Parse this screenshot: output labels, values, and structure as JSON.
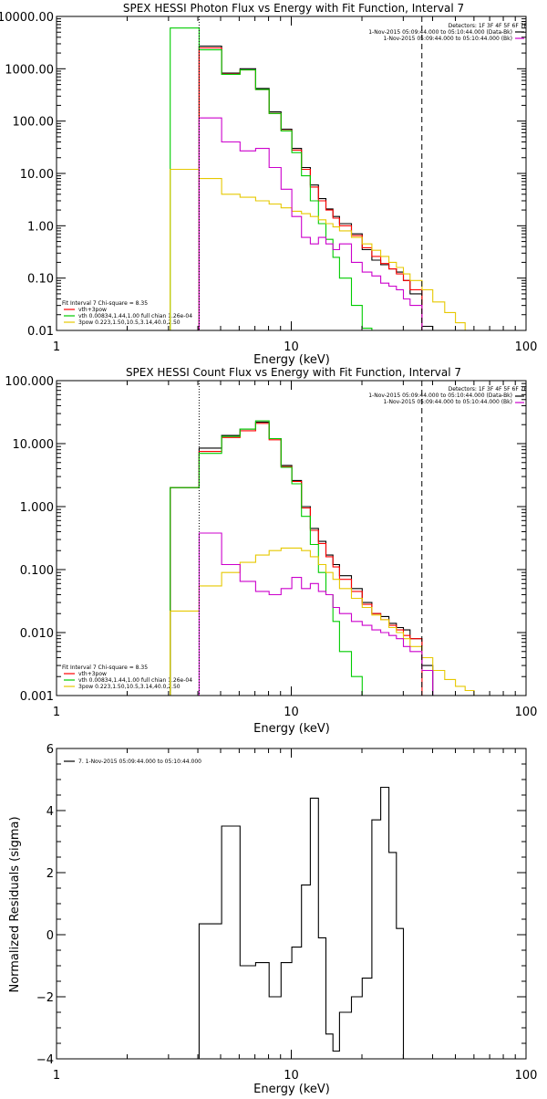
{
  "colors": {
    "total": "#000000",
    "model": "#ff0000",
    "vth": "#00cc00",
    "pow": "#e6c800",
    "bk": "#cc00cc"
  },
  "chart_data": [
    {
      "type": "line",
      "title": "SPEX HESSI Photon Flux vs Energy with Fit Function, Interval 7",
      "xlabel": "Energy (keV)",
      "ylabel": "",
      "xscale": "log",
      "yscale": "log",
      "xlim": [
        1,
        100
      ],
      "ylim": [
        0.01,
        10000
      ],
      "xticks": [
        "1",
        "10",
        "100"
      ],
      "yticks": [
        {
          "v": 10000,
          "label": "10000.00"
        },
        {
          "v": 1000,
          "label": "1000.00"
        },
        {
          "v": 100,
          "label": "100.00"
        },
        {
          "v": 10,
          "label": "10.00"
        },
        {
          "v": 1,
          "label": "1.00"
        },
        {
          "v": 0.1,
          "label": "0.10"
        },
        {
          "v": 0.01,
          "label": "0.01"
        }
      ],
      "header": [
        "Detectors: 1F 3F 4F 5F 6F 7F",
        "1-Nov-2015 05:09:44.000 to 05:10:44.000 (Data-Bk)",
        "1-Nov-2015 05:09:44.000 to 05:10:44.000 (Bk)"
      ],
      "legend": [
        "Fit Interval 7   Chi-square = 8.35",
        "vth+3pow",
        "vth 0.00834,1.44,1.00  full chian 1.26e-04",
        "3pow 0.223,1.50,10.5,3.14,40.0,2.50"
      ],
      "vlines": [
        {
          "x": 4.05,
          "style": "dotted"
        },
        {
          "x": 36,
          "style": "dashed"
        }
      ],
      "edges": [
        3.05,
        4.05,
        5.05,
        6.05,
        7.05,
        8.05,
        9.05,
        10.05,
        11.05,
        12.05,
        13.05,
        14.05,
        15.05,
        16.05,
        18.05,
        20.05,
        22.05,
        24.05,
        26.05,
        28.05,
        30.05,
        32.05,
        36.05,
        40.05,
        45.05,
        50.05,
        55.05,
        60.05
      ],
      "series": [
        {
          "name": "Data-Bk",
          "color": "#000000",
          "values": [
            null,
            2700,
            830,
            1000,
            420,
            150,
            70,
            30,
            13,
            6,
            3.3,
            2.1,
            1.5,
            1.1,
            0.7,
            0.35,
            0.22,
            0.18,
            0.15,
            0.13,
            0.09,
            0.05,
            0.012,
            null,
            null,
            null,
            null
          ]
        },
        {
          "name": "vth+3pow",
          "color": "#ff0000",
          "values": [
            null,
            2500,
            790,
            950,
            400,
            140,
            66,
            28,
            12,
            5.5,
            3.0,
            2.0,
            1.4,
            1.0,
            0.65,
            0.38,
            0.26,
            0.19,
            0.15,
            0.12,
            0.09,
            0.06,
            null,
            null,
            null,
            null,
            null
          ]
        },
        {
          "name": "vth",
          "color": "#00cc00",
          "values": [
            6000,
            2300,
            780,
            950,
            400,
            140,
            65,
            25,
            9,
            3.0,
            1.1,
            0.55,
            0.25,
            0.1,
            0.03,
            0.011,
            null,
            null,
            null,
            null,
            null,
            null,
            null,
            null,
            null,
            null,
            null
          ]
        },
        {
          "name": "3pow",
          "color": "#e6c800",
          "values": [
            12,
            8,
            4,
            3.5,
            3.0,
            2.6,
            2.2,
            1.9,
            1.7,
            1.5,
            1.3,
            1.1,
            0.95,
            0.8,
            0.6,
            0.45,
            0.34,
            0.26,
            0.2,
            0.16,
            0.12,
            0.09,
            0.06,
            0.035,
            0.022,
            0.014,
            0.01
          ]
        },
        {
          "name": "Bk",
          "color": "#cc00cc",
          "values": [
            null,
            115,
            40,
            27,
            30,
            13,
            5,
            1.5,
            0.6,
            0.45,
            0.6,
            0.45,
            0.35,
            0.45,
            0.2,
            0.13,
            0.11,
            0.08,
            0.07,
            0.06,
            0.04,
            0.03,
            0.01,
            null,
            null,
            null,
            null
          ]
        }
      ]
    },
    {
      "type": "line",
      "title": "SPEX HESSI Count Flux vs Energy with Fit Function, Interval 7",
      "xlabel": "Energy (keV)",
      "ylabel": "",
      "xscale": "log",
      "yscale": "log",
      "xlim": [
        1,
        100
      ],
      "ylim": [
        0.001,
        100
      ],
      "xticks": [
        "1",
        "10",
        "100"
      ],
      "yticks": [
        {
          "v": 100,
          "label": "100.000"
        },
        {
          "v": 10,
          "label": "10.000"
        },
        {
          "v": 1,
          "label": "1.000"
        },
        {
          "v": 0.1,
          "label": "0.100"
        },
        {
          "v": 0.01,
          "label": "0.010"
        },
        {
          "v": 0.001,
          "label": "0.001"
        }
      ],
      "header": [
        "Detectors: 1F 3F 4F 5F 6F 7F",
        "1-Nov-2015 05:09:44.000 to 05:10:44.000 (Data-Bk)",
        "1-Nov-2015 05:09:44.000 to 05:10:44.000 (Bk)"
      ],
      "legend": [
        "Fit Interval 7   Chi-square = 8.35",
        "vth+3pow",
        "vth 0.00834,1.44,1.00  full chian 1.26e-04",
        "3pow 0.223,1.50,10.5,3.14,40.0,2.50"
      ],
      "vlines": [
        {
          "x": 4.05,
          "style": "dotted"
        },
        {
          "x": 36,
          "style": "dashed"
        }
      ],
      "edges": [
        3.05,
        4.05,
        5.05,
        6.05,
        7.05,
        8.05,
        9.05,
        10.05,
        11.05,
        12.05,
        13.05,
        14.05,
        15.05,
        16.05,
        18.05,
        20.05,
        22.05,
        24.05,
        26.05,
        28.05,
        30.05,
        32.05,
        36.05,
        40.05,
        45.05,
        50.05,
        55.05,
        60.05,
        70.05,
        80.05
      ],
      "series": [
        {
          "name": "Data-Bk",
          "color": "#000000",
          "values": [
            2.0,
            8.5,
            13.5,
            17,
            22,
            12,
            4.5,
            2.6,
            1.0,
            0.45,
            0.28,
            0.17,
            0.12,
            0.08,
            0.05,
            0.03,
            0.02,
            0.018,
            0.014,
            0.012,
            0.011,
            0.008,
            0.003,
            null,
            null,
            null,
            null,
            null,
            null
          ]
        },
        {
          "name": "vth+3pow",
          "color": "#ff0000",
          "values": [
            2.0,
            7.5,
            12.5,
            16,
            21,
            11.5,
            4.3,
            2.5,
            0.95,
            0.42,
            0.26,
            0.16,
            0.11,
            0.07,
            0.045,
            0.028,
            0.02,
            0.016,
            0.013,
            0.011,
            0.009,
            0.008,
            null,
            null,
            null,
            null,
            null,
            null,
            null
          ]
        },
        {
          "name": "vth",
          "color": "#00cc00",
          "values": [
            2.0,
            7.0,
            13,
            17,
            23,
            12,
            4.2,
            2.3,
            0.7,
            0.25,
            0.09,
            0.04,
            0.015,
            0.005,
            0.002,
            null,
            null,
            null,
            null,
            null,
            null,
            null,
            null,
            null,
            null,
            null,
            null,
            null,
            null
          ]
        },
        {
          "name": "3pow",
          "color": "#e6c800",
          "values": [
            0.022,
            0.055,
            0.09,
            0.13,
            0.17,
            0.2,
            0.22,
            0.22,
            0.2,
            0.16,
            0.12,
            0.09,
            0.07,
            0.05,
            0.035,
            0.025,
            0.019,
            0.016,
            0.012,
            0.01,
            0.008,
            0.006,
            0.004,
            0.0025,
            0.0018,
            0.0014,
            0.0012,
            0.001,
            0.001
          ]
        },
        {
          "name": "Bk",
          "color": "#cc00cc",
          "values": [
            null,
            0.38,
            0.12,
            0.065,
            0.045,
            0.04,
            0.05,
            0.075,
            0.05,
            0.06,
            0.045,
            0.04,
            0.025,
            0.02,
            0.015,
            0.013,
            0.011,
            0.01,
            0.009,
            0.008,
            0.006,
            0.005,
            0.0025,
            null,
            null,
            null,
            null,
            null,
            null
          ]
        }
      ]
    },
    {
      "type": "line",
      "title": "",
      "xlabel": "Energy (keV)",
      "ylabel": "Normalized Residuals (sigma)",
      "xscale": "log",
      "yscale": "linear",
      "xlim": [
        1,
        100
      ],
      "ylim": [
        -4,
        6
      ],
      "xticks": [
        "1",
        "10",
        "100"
      ],
      "yticks": [
        {
          "v": 6,
          "label": "6"
        },
        {
          "v": 4,
          "label": "4"
        },
        {
          "v": 2,
          "label": "2"
        },
        {
          "v": 0,
          "label": "0"
        },
        {
          "v": -2,
          "label": "−2"
        },
        {
          "v": -4,
          "label": "−4"
        }
      ],
      "legend": [
        "7. 1-Nov-2015 05:09:44.000 to 05:10:44.000"
      ],
      "edges": [
        4.05,
        5.05,
        6.05,
        7.05,
        8.05,
        9.05,
        10.05,
        11.05,
        12.05,
        13.05,
        14.05,
        15.05,
        16.05,
        18.05,
        20.05,
        22.05,
        24.05,
        26.05,
        28.05,
        30.05,
        32.05,
        36.05
      ],
      "series": [
        {
          "name": "7. 1-Nov-2015 05:09:44.000 to 05:10:44.000",
          "color": "#000000",
          "values": [
            0.35,
            3.5,
            -1.0,
            -0.9,
            -2.0,
            -0.9,
            -0.4,
            1.6,
            4.4,
            -0.1,
            -3.2,
            -3.75,
            -2.5,
            -2.0,
            -1.4,
            3.7,
            4.75,
            2.65,
            0.2,
            -4.0,
            -4.0
          ]
        }
      ]
    }
  ]
}
